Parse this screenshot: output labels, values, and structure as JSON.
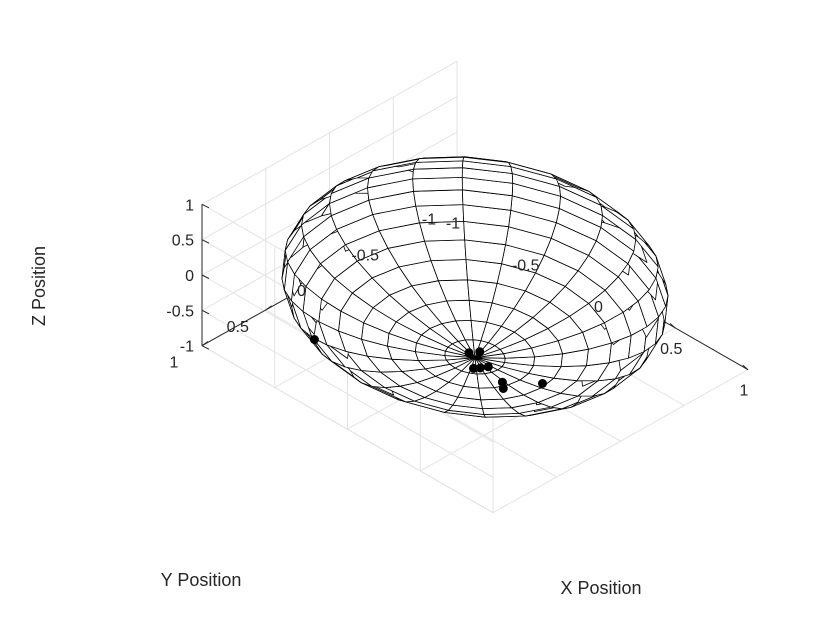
{
  "chart_data": {
    "type": "scatter3d",
    "title": "",
    "xlabel": "X Position",
    "ylabel": "Y Position",
    "zlabel": "Z Position",
    "xlim": [
      -1,
      1
    ],
    "ylim": [
      -1,
      1
    ],
    "zlim": [
      -1,
      1
    ],
    "xticks": [
      "-1",
      "-0.5",
      "0",
      "0.5",
      "1"
    ],
    "yticks": [
      "-1",
      "-0.5",
      "0",
      "0.5",
      "1"
    ],
    "zticks": [
      "-1",
      "-0.5",
      "0",
      "0.5",
      "1"
    ],
    "grid": true,
    "box": false,
    "surface": {
      "shape": "unit sphere wireframe",
      "face_color": "#ffffff",
      "edge_color": "#000000",
      "meridians": 24,
      "parallels": 20
    },
    "points": {
      "color": "#000000",
      "values": [
        {
          "x": -0.42,
          "y": 0.78,
          "z": -0.45
        },
        {
          "x": -0.05,
          "y": -0.01,
          "z": -1.0
        },
        {
          "x": -0.02,
          "y": -0.06,
          "z": -1.0
        },
        {
          "x": 0.06,
          "y": 0.08,
          "z": -1.0
        },
        {
          "x": 0.08,
          "y": 0.05,
          "z": -1.0
        },
        {
          "x": 0.1,
          "y": 0.01,
          "z": -1.0
        },
        {
          "x": 0.25,
          "y": 0.07,
          "z": -0.98
        },
        {
          "x": 0.3,
          "y": 0.12,
          "z": -0.96
        },
        {
          "x": 0.42,
          "y": -0.05,
          "z": -0.92
        }
      ]
    }
  }
}
